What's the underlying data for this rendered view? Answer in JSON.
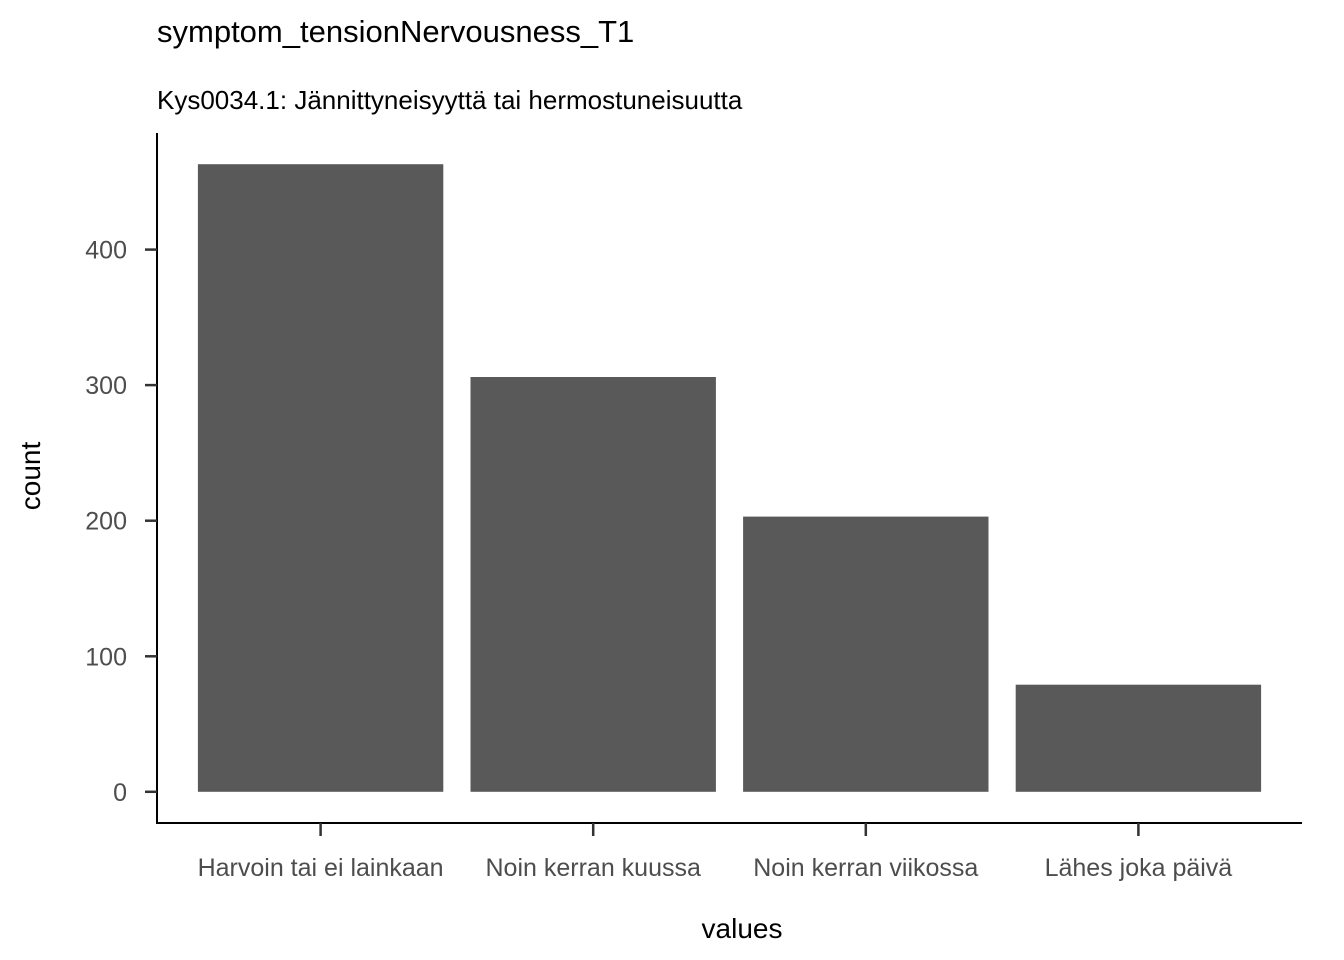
{
  "chart_data": {
    "type": "bar",
    "title": "symptom_tensionNervousness_T1",
    "subtitle": "Kys0034.1: Jännittyneisyyttä tai hermostuneisuutta",
    "xlabel": "values",
    "ylabel": "count",
    "categories": [
      "Harvoin tai ei lainkaan",
      "Noin kerran kuussa",
      "Noin kerran viikossa",
      "Lähes joka päivä"
    ],
    "values": [
      463,
      306,
      203,
      79
    ],
    "yticks": [
      0,
      100,
      200,
      300,
      400
    ],
    "ylim": [
      -23,
      486
    ],
    "bar_color": "#595959",
    "grid": false,
    "legend": "none"
  }
}
